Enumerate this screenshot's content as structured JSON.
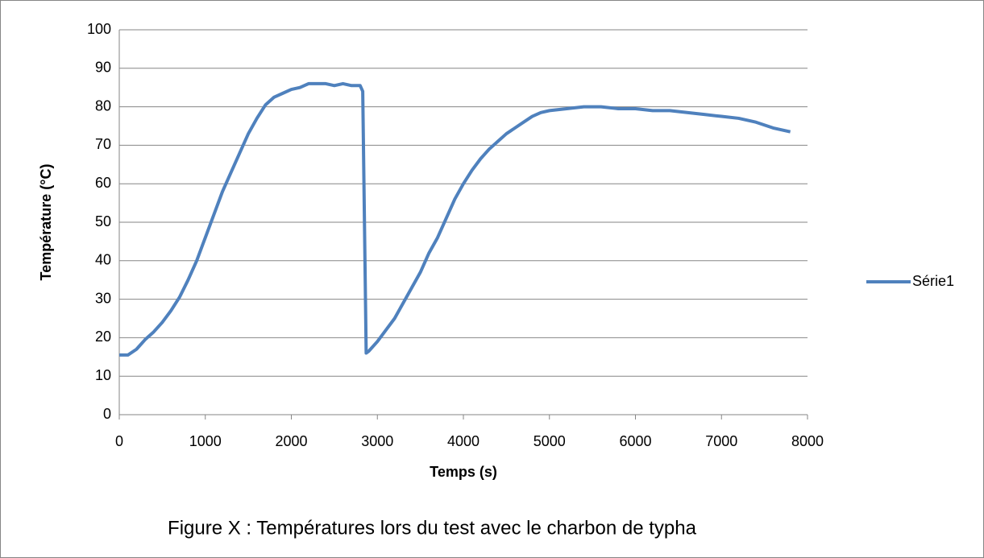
{
  "chart_data": {
    "type": "line",
    "x_label": "Temps (s)",
    "y_label": "Température (°C)",
    "caption": "Figure X : Températures lors du test avec le charbon de typha",
    "xlim": [
      0,
      8000
    ],
    "xticks": [
      0,
      1000,
      2000,
      3000,
      4000,
      5000,
      6000,
      7000,
      8000
    ],
    "ylim": [
      0,
      100
    ],
    "yticks": [
      0,
      10,
      20,
      30,
      40,
      50,
      60,
      70,
      80,
      90,
      100
    ],
    "grid": true,
    "legend": "right",
    "series": [
      {
        "name": "Série1",
        "color": "#4f81bd",
        "x": [
          0,
          100,
          200,
          300,
          400,
          500,
          600,
          700,
          800,
          900,
          1000,
          1100,
          1200,
          1300,
          1400,
          1500,
          1600,
          1700,
          1800,
          1900,
          2000,
          2100,
          2200,
          2300,
          2400,
          2500,
          2600,
          2700,
          2800,
          2830,
          2850,
          2870,
          2900,
          3000,
          3100,
          3200,
          3300,
          3400,
          3500,
          3600,
          3700,
          3800,
          3900,
          4000,
          4100,
          4200,
          4300,
          4400,
          4500,
          4600,
          4700,
          4800,
          4900,
          5000,
          5200,
          5400,
          5600,
          5800,
          6000,
          6200,
          6400,
          6600,
          6800,
          7000,
          7200,
          7400,
          7600,
          7800
        ],
        "values": [
          15.5,
          15.5,
          17,
          19.5,
          21.5,
          24,
          27,
          30.5,
          35,
          40,
          46,
          52,
          58,
          63,
          68,
          73,
          77,
          80.5,
          82.5,
          83.5,
          84.5,
          85,
          86,
          86,
          86,
          85.5,
          86,
          85.5,
          85.5,
          84,
          50,
          16,
          16.5,
          19,
          22,
          25,
          29,
          33,
          37,
          42,
          46,
          51,
          56,
          60,
          63.5,
          66.5,
          69,
          71,
          73,
          74.5,
          76,
          77.5,
          78.5,
          79,
          79.5,
          80,
          80,
          79.5,
          79.5,
          79,
          79,
          78.5,
          78,
          77.5,
          77,
          76,
          74.5,
          73.5
        ]
      }
    ]
  }
}
